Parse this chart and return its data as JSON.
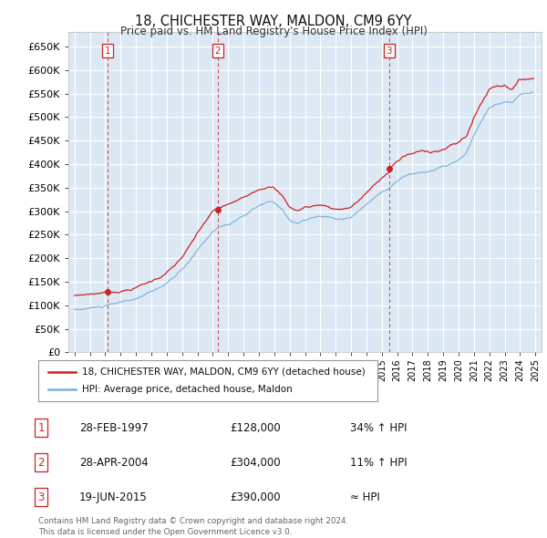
{
  "title": "18, CHICHESTER WAY, MALDON, CM9 6YY",
  "subtitle": "Price paid vs. HM Land Registry's House Price Index (HPI)",
  "transaction_labels": [
    "1",
    "2",
    "3"
  ],
  "transaction_dates": [
    1997.15,
    2004.32,
    2015.47
  ],
  "transaction_prices": [
    128000,
    304000,
    390000
  ],
  "legend_entries": [
    "18, CHICHESTER WAY, MALDON, CM9 6YY (detached house)",
    "HPI: Average price, detached house, Maldon"
  ],
  "table_rows": [
    [
      "1",
      "28-FEB-1997",
      "£128,000",
      "34% ↑ HPI"
    ],
    [
      "2",
      "28-APR-2004",
      "£304,000",
      "11% ↑ HPI"
    ],
    [
      "3",
      "19-JUN-2015",
      "£390,000",
      "≈ HPI"
    ]
  ],
  "footer": "Contains HM Land Registry data © Crown copyright and database right 2024.\nThis data is licensed under the Open Government Licence v3.0.",
  "ylim": [
    0,
    680000
  ],
  "yticks": [
    0,
    50000,
    100000,
    150000,
    200000,
    250000,
    300000,
    350000,
    400000,
    450000,
    500000,
    550000,
    600000,
    650000
  ],
  "xlim_start": 1994.6,
  "xlim_end": 2025.4,
  "bg_color": "#ffffff",
  "plot_bg_color": "#dce9f5",
  "grid_color": "#ffffff",
  "red_color": "#cc2222",
  "blue_color": "#7ab0d4"
}
